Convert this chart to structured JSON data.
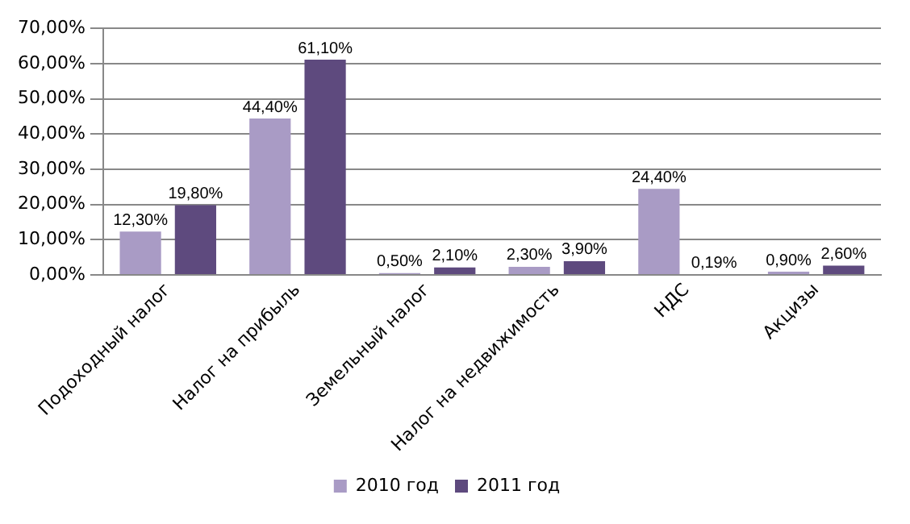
{
  "chart_data": {
    "type": "bar",
    "categories": [
      "Подоходный налог",
      "Налог на прибыль",
      "Земельный налог",
      "Налог на недвижимость",
      "НДС",
      "Акцизы"
    ],
    "series": [
      {
        "name": "2010 год",
        "color": "#a99bc5",
        "values": [
          12.3,
          44.4,
          0.5,
          2.3,
          24.4,
          0.9
        ],
        "value_labels": [
          "12,30%",
          "44,40%",
          "0,50%",
          "2,30%",
          "24,40%",
          "0,90%"
        ]
      },
      {
        "name": "2011 год",
        "color": "#5e4a7e",
        "values": [
          19.8,
          61.1,
          2.1,
          3.9,
          0.19,
          2.6
        ],
        "value_labels": [
          "19,80%",
          "61,10%",
          "2,10%",
          "3,90%",
          "0,19%",
          "2,60%"
        ]
      }
    ],
    "ylim": [
      0,
      70
    ],
    "yticks": [
      {
        "value": 0,
        "label": "0,00%"
      },
      {
        "value": 10,
        "label": "10,00%"
      },
      {
        "value": 20,
        "label": "20,00%"
      },
      {
        "value": 30,
        "label": "30,00%"
      },
      {
        "value": 40,
        "label": "40,00%"
      },
      {
        "value": 50,
        "label": "50,00%"
      },
      {
        "value": 60,
        "label": "60,00%"
      },
      {
        "value": 70,
        "label": "70,00%"
      }
    ],
    "grid": "y",
    "legend": "bottom"
  }
}
